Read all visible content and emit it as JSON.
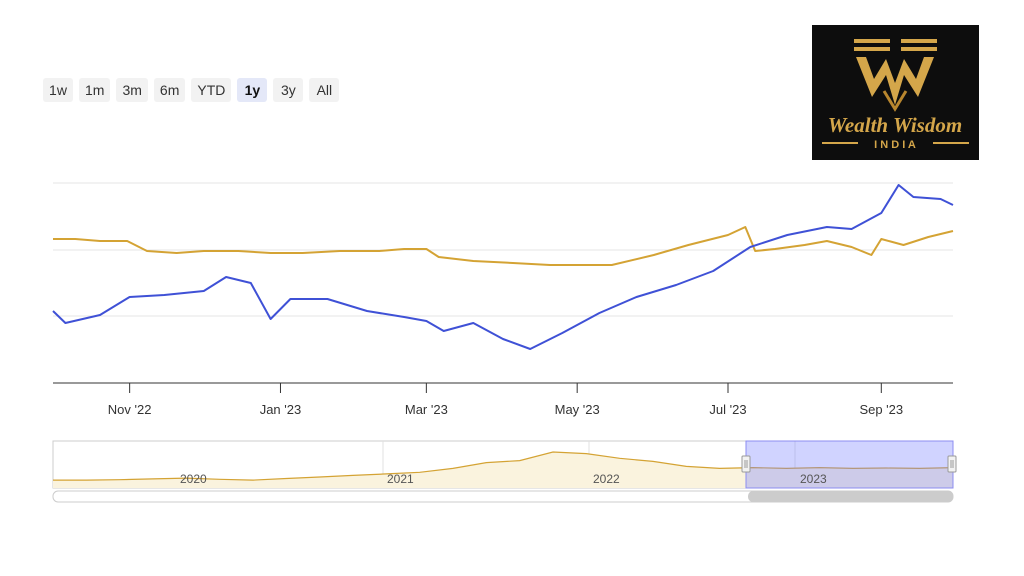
{
  "range_selector": {
    "buttons": [
      {
        "label": "1w"
      },
      {
        "label": "1m"
      },
      {
        "label": "3m"
      },
      {
        "label": "6m"
      },
      {
        "label": "YTD"
      },
      {
        "label": "1y",
        "active": true
      },
      {
        "label": "3y"
      },
      {
        "label": "All"
      }
    ]
  },
  "logo": {
    "text_line1": "Wealth Wisdom",
    "text_line2": "I N D I A",
    "background": "#0d0d0d",
    "color": "#d4a64a"
  },
  "chart_data": {
    "type": "line",
    "x_type": "date",
    "x_range": [
      "2022-10-01",
      "2023-09-30"
    ],
    "x_ticks": [
      "Nov '22",
      "Jan '23",
      "Mar '23",
      "May '23",
      "Jul '23",
      "Sep '23"
    ],
    "grid": true,
    "series": [
      {
        "color": "#d4a334",
        "points": [
          [
            "2022-10-01",
            0.72
          ],
          [
            "2022-10-10",
            0.72
          ],
          [
            "2022-10-20",
            0.71
          ],
          [
            "2022-10-31",
            0.71
          ],
          [
            "2022-11-08",
            0.66
          ],
          [
            "2022-11-20",
            0.65
          ],
          [
            "2022-12-01",
            0.66
          ],
          [
            "2022-12-15",
            0.66
          ],
          [
            "2022-12-28",
            0.65
          ],
          [
            "2023-01-10",
            0.65
          ],
          [
            "2023-01-25",
            0.66
          ],
          [
            "2023-02-10",
            0.66
          ],
          [
            "2023-02-20",
            0.67
          ],
          [
            "2023-03-01",
            0.67
          ],
          [
            "2023-03-06",
            0.63
          ],
          [
            "2023-03-20",
            0.61
          ],
          [
            "2023-04-05",
            0.6
          ],
          [
            "2023-04-20",
            0.59
          ],
          [
            "2023-05-05",
            0.59
          ],
          [
            "2023-05-15",
            0.59
          ],
          [
            "2023-06-01",
            0.64
          ],
          [
            "2023-06-15",
            0.69
          ],
          [
            "2023-07-01",
            0.74
          ],
          [
            "2023-07-08",
            0.78
          ],
          [
            "2023-07-12",
            0.66
          ],
          [
            "2023-07-20",
            0.67
          ],
          [
            "2023-08-01",
            0.69
          ],
          [
            "2023-08-10",
            0.71
          ],
          [
            "2023-08-20",
            0.68
          ],
          [
            "2023-08-28",
            0.64
          ],
          [
            "2023-09-01",
            0.72
          ],
          [
            "2023-09-10",
            0.69
          ],
          [
            "2023-09-20",
            0.73
          ],
          [
            "2023-09-30",
            0.76
          ]
        ]
      },
      {
        "color": "#3f51d6",
        "points": [
          [
            "2022-10-01",
            0.36
          ],
          [
            "2022-10-06",
            0.3
          ],
          [
            "2022-10-20",
            0.34
          ],
          [
            "2022-11-01",
            0.43
          ],
          [
            "2022-11-15",
            0.44
          ],
          [
            "2022-12-01",
            0.46
          ],
          [
            "2022-12-10",
            0.53
          ],
          [
            "2022-12-20",
            0.5
          ],
          [
            "2022-12-28",
            0.32
          ],
          [
            "2023-01-05",
            0.42
          ],
          [
            "2023-01-20",
            0.42
          ],
          [
            "2023-02-05",
            0.36
          ],
          [
            "2023-02-20",
            0.33
          ],
          [
            "2023-03-01",
            0.31
          ],
          [
            "2023-03-08",
            0.26
          ],
          [
            "2023-03-20",
            0.3
          ],
          [
            "2023-04-01",
            0.22
          ],
          [
            "2023-04-12",
            0.17
          ],
          [
            "2023-04-25",
            0.25
          ],
          [
            "2023-05-10",
            0.35
          ],
          [
            "2023-05-25",
            0.43
          ],
          [
            "2023-06-10",
            0.49
          ],
          [
            "2023-06-25",
            0.56
          ],
          [
            "2023-07-10",
            0.68
          ],
          [
            "2023-07-25",
            0.74
          ],
          [
            "2023-08-10",
            0.78
          ],
          [
            "2023-08-20",
            0.77
          ],
          [
            "2023-09-01",
            0.85
          ],
          [
            "2023-09-08",
            0.99
          ],
          [
            "2023-09-14",
            0.93
          ],
          [
            "2023-09-25",
            0.92
          ],
          [
            "2023-09-30",
            0.89
          ]
        ]
      }
    ],
    "navigator": {
      "labels": [
        "2020",
        "2021",
        "2022",
        "2023"
      ],
      "selected_range_label": "2023",
      "series": [
        [
          0.1,
          0.1,
          0.11,
          0.13,
          0.15,
          0.12,
          0.1,
          0.14,
          0.18,
          0.22,
          0.26,
          0.3,
          0.4,
          0.55,
          0.6,
          0.82,
          0.78,
          0.66,
          0.58,
          0.45,
          0.4,
          0.42,
          0.4,
          0.42,
          0.4,
          0.41,
          0.4,
          0.42
        ]
      ]
    }
  }
}
